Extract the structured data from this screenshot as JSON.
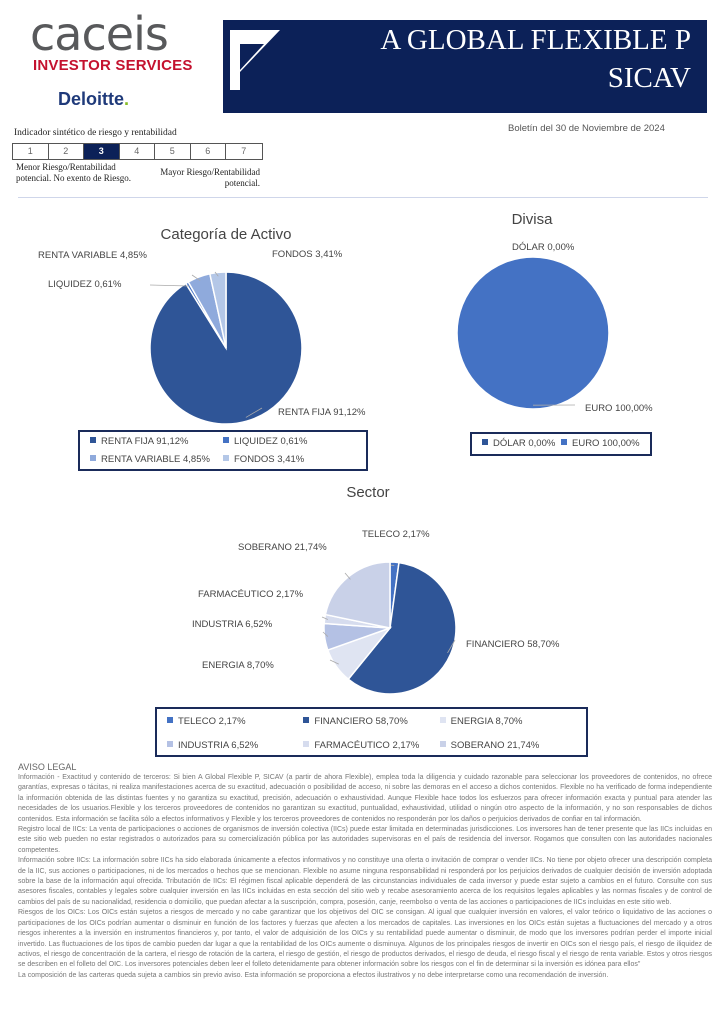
{
  "header": {
    "logo_main": "caceis",
    "logo_sub": "INVESTOR SERVICES",
    "partner_logo": "Deloitte",
    "title_line1": "A GLOBAL FLEXIBLE P",
    "title_line2": "SICAV",
    "date": "Boletín del 30 de Noviembre de 2024",
    "brand_color": "#0c2158"
  },
  "risk": {
    "label": "Indicador sintético de riesgo y rentabilidad",
    "levels": [
      "1",
      "2",
      "3",
      "4",
      "5",
      "6",
      "7"
    ],
    "selected": 3,
    "low_text": "Menor Riesgo/Rentabilidad potencial. No exento de Riesgo.",
    "high_text": "Mayor Riesgo/Rentabilidad potencial."
  },
  "chart_data": [
    {
      "type": "pie",
      "title": "Categoría de Activo",
      "legend": "bottom",
      "categories": [
        "RENTA FIJA",
        "LIQUIDEZ",
        "RENTA VARIABLE",
        "FONDOS"
      ],
      "values": [
        91.12,
        0.61,
        4.85,
        3.41
      ],
      "labels": [
        "RENTA FIJA 91,12%",
        "LIQUIDEZ 0,61%",
        "RENTA VARIABLE 4,85%",
        "FONDOS 3,41%"
      ],
      "colors": [
        "#2f5597",
        "#4472c4",
        "#8faadc",
        "#b4c7e7"
      ]
    },
    {
      "type": "pie",
      "title": "Divisa",
      "legend": "bottom",
      "categories": [
        "DÓLAR",
        "EURO"
      ],
      "values": [
        0.0,
        100.0
      ],
      "labels": [
        "DÓLAR 0,00%",
        "EURO 100,00%"
      ],
      "colors": [
        "#2f5597",
        "#4472c4"
      ]
    },
    {
      "type": "pie",
      "title": "Sector",
      "legend": "bottom",
      "categories": [
        "TELECO",
        "FINANCIERO",
        "ENERGIA",
        "INDUSTRIA",
        "FARMACÉUTICO",
        "SOBERANO"
      ],
      "values": [
        2.17,
        58.7,
        8.7,
        6.52,
        2.17,
        21.74
      ],
      "labels": [
        "TELECO 2,17%",
        "FINANCIERO 58,70%",
        "ENERGIA 8,70%",
        "INDUSTRIA 6,52%",
        "FARMACÉUTICO 2,17%",
        "SOBERANO 21,74%"
      ],
      "colors": [
        "#4472c4",
        "#2f5597",
        "#dfe4f2",
        "#b4c1e4",
        "#d6dcee",
        "#c9d1e8"
      ]
    }
  ],
  "legal": {
    "heading": "AVISO LEGAL",
    "paragraphs": [
      "Información - Exactitud y contenido de terceros: Si bien A Global Flexible P, SICAV (a partir de ahora Flexible), emplea toda la diligencia y cuidado razonable para seleccionar los proveedores de contenidos, no ofrece garantías, expresas o tácitas, ni realiza manifestaciones acerca de su exactitud, adecuación o posibilidad de acceso, ni sobre las demoras en el acceso a dichos contenidos. Flexible no ha verificado de forma independiente la información obtenida de las distintas fuentes y no garantiza su exactitud, precisión, adecuación o exhaustividad. Aunque Flexible hace todos los esfuerzos para ofrecer información exacta y puntual para atender las necesidades de los usuarios.Flexible y los terceros proveedores de contenidos no garantizan su exactitud, puntualidad, exhaustividad, utilidad o ningún otro aspecto de la información, y no son responsables de dichos contenidos. Esta información se facilita sólo a efectos informativos y Flexible y los terceros proveedores de contenidos no responderán por los daños o perjuicios derivados de confiar en tal información.",
      "Registro local de IICs: La venta de participaciones o acciones de organismos de inversión colectiva (IICs) puede estar limitada en determinadas jurisdicciones. Los inversores han de tener presente que las IICs incluidas en este sitio web pueden no estar registrados o autorizados para su comercialización pública por las autoridades supervisoras en el país de residencia del inversor. Rogamos que consulten con las autoridades nacionales competentes.",
      "Información sobre IICs: La información sobre IICs ha sido elaborada únicamente a efectos informativos y no constituye una oferta o invitación de comprar o vender IICs. No tiene por objeto ofrecer una descripción completa de la IIC, sus acciones o participaciones, ni de los mercados o hechos que se mencionan. Flexible no asume ninguna responsabilidad ni responderá por los perjuicios derivados de cualquier decisión de inversión adoptada sobre la base de la información aquí ofrecida. Tributación de IICs: El régimen fiscal aplicable dependerá de las circunstancias individuales de cada inversor y puede estar sujeto a cambios en el futuro. Consulte con sus asesores fiscales, contables y legales sobre cualquier inversión en las IICs incluidas en esta sección del sitio web y recabe asesoramiento acerca de los requisitos legales aplicables y las normas fiscales y de control de cambios del país de su nacionalidad, residencia o domicilio, que puedan afectar a la suscripción, compra, posesión, canje, reembolso o venta de las acciones o participaciones de IICs incluidas en este sitio web.",
      "Riesgos de los OICs: Los OICs están sujetos a riesgos de mercado y no cabe garantizar que los objetivos del OIC se consigan. Al igual que cualquier inversión en valores, el valor teórico o liquidativo de las acciones o participaciones de los OICs podrían aumentar o disminuir en función de los factores y fuerzas que afecten a los mercados de capitales. Las inversiones en los OICs están sujetas a fluctuaciones del mercado y a otros riesgos inherentes a la inversión en instrumentos financieros y, por tanto, el valor de adquisición de los OICs y su rentabilidad puede aumentar o disminuir, de modo que los inversores podrían perder el importe inicial invertido. Las fluctuaciones de los tipos de cambio pueden dar lugar a que la rentabilidad de los OICs aumente o disminuya. Algunos de los principales riesgos de invertir en OICs son el riesgo país, el riesgo de iliquidez de activos, el riesgo de concentración de la cartera, el riesgo de rotación de la cartera, el riesgo de gestión, el riesgo de productos derivados, el riesgo de deuda, el riesgo fiscal y el riesgo de renta variable. Estos y otros riesgos se describen en el folleto del OIC. Los inversores potenciales deben leer el folleto detenidamente para obtener información sobre los riesgos con el fin de determinar si la inversión es idónea para ellos\"",
      "La composición de las carteras queda sujeta a cambios sin previo aviso. Esta información se proporciona a efectos ilustrativos y no debe interpretarse como una recomendación de inversión."
    ]
  }
}
